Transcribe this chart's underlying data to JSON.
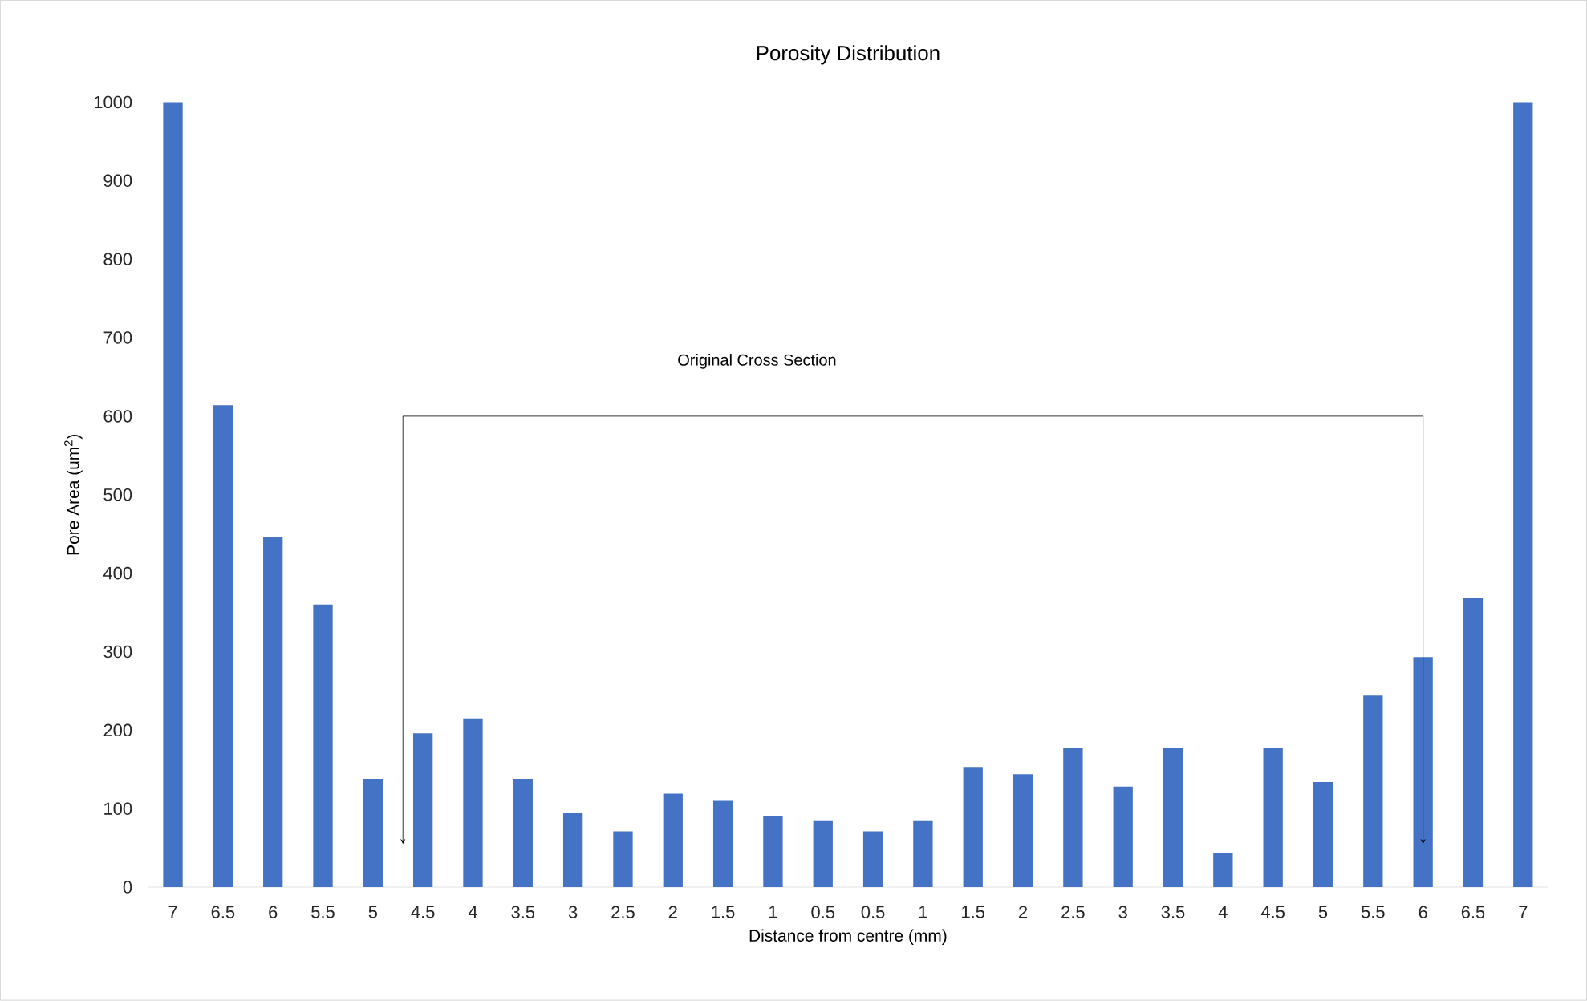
{
  "chart_data": {
    "type": "bar",
    "title": "Porosity Distribution",
    "xlabel": "Distance from centre (mm)",
    "ylabel": "Pore Area (um$^{2}$)",
    "categories": [
      "7",
      "6.5",
      "6",
      "5.5",
      "5",
      "4.5",
      "4",
      "3.5",
      "3",
      "2.5",
      "2",
      "1.5",
      "1",
      "0.5",
      "0.5",
      "1",
      "1.5",
      "2",
      "2.5",
      "3",
      "3.5",
      "4",
      "4.5",
      "5",
      "5.5",
      "6",
      "6.5",
      "7"
    ],
    "values": [
      1000,
      614,
      446,
      360,
      138,
      196,
      215,
      138,
      94,
      71,
      119,
      110,
      91,
      85,
      71,
      85,
      153,
      144,
      177,
      128,
      177,
      43,
      177,
      134,
      244,
      293,
      369,
      1000
    ],
    "color": "#4472c4",
    "ylim": [
      0,
      1000
    ],
    "yticks": [
      0,
      100,
      200,
      300,
      400,
      500,
      600,
      700,
      800,
      900,
      1000
    ],
    "annotations": [
      "Original Cross Section"
    ]
  }
}
